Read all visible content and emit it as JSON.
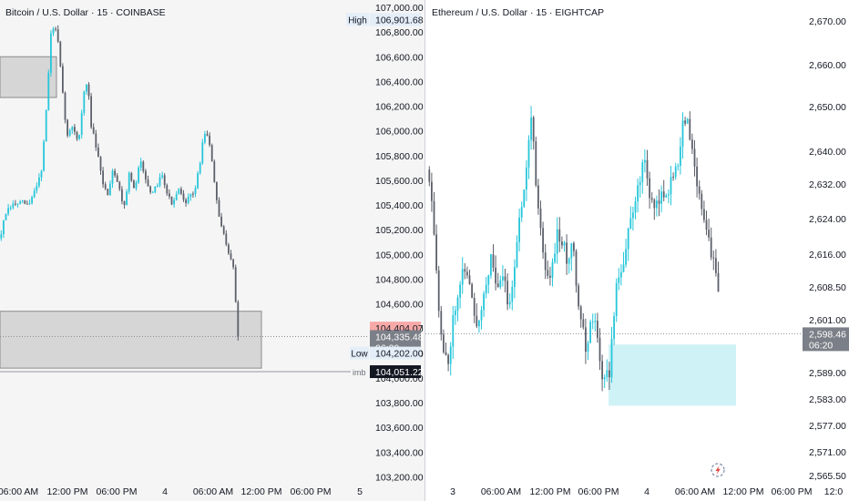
{
  "chart_data": [
    {
      "type": "candlestick",
      "title": "Bitcoin / U.S. Dollar · 15 · COINBASE",
      "y_ticks": [
        107000,
        106800,
        106600,
        106400,
        106200,
        106000,
        105800,
        105600,
        105400,
        105200,
        105000,
        104800,
        104600,
        104400,
        104200,
        104000,
        103800,
        103600,
        103400,
        103200
      ],
      "y_tick_labels": [
        "107,000.00",
        "106,800.00",
        "106,600.00",
        "106,400.00",
        "106,200.00",
        "106,000.00",
        "105,800.00",
        "105,600.00",
        "105,400.00",
        "105,200.00",
        "105,000.00",
        "104,800.00",
        "104,600.00",
        "104,400.00",
        "104,200.00",
        "104,000.00",
        "103,800.00",
        "103,600.00",
        "103,400.00",
        "103,200.00"
      ],
      "ylim": [
        103170,
        107020
      ],
      "x_tick_labels": [
        "06:00 AM",
        "12:00 PM",
        "06:00 PM",
        "4",
        "06:00 AM",
        "12:00 PM",
        "06:00 PM",
        "5"
      ],
      "path": [
        [
          0,
          105130
        ],
        [
          6,
          105330
        ],
        [
          14,
          105400
        ],
        [
          24,
          105420
        ],
        [
          32,
          105400
        ],
        [
          40,
          105560
        ],
        [
          46,
          105700
        ],
        [
          52,
          106300
        ],
        [
          56,
          106800
        ],
        [
          60,
          106850
        ],
        [
          64,
          106700
        ],
        [
          70,
          106200
        ],
        [
          74,
          105950
        ],
        [
          80,
          106050
        ],
        [
          86,
          105900
        ],
        [
          92,
          106300
        ],
        [
          96,
          106400
        ],
        [
          100,
          106050
        ],
        [
          106,
          105850
        ],
        [
          112,
          105600
        ],
        [
          118,
          105480
        ],
        [
          124,
          105700
        ],
        [
          130,
          105560
        ],
        [
          136,
          105380
        ],
        [
          142,
          105660
        ],
        [
          148,
          105500
        ],
        [
          154,
          105780
        ],
        [
          160,
          105620
        ],
        [
          166,
          105460
        ],
        [
          172,
          105560
        ],
        [
          178,
          105660
        ],
        [
          184,
          105480
        ],
        [
          190,
          105400
        ],
        [
          196,
          105530
        ],
        [
          202,
          105420
        ],
        [
          208,
          105460
        ],
        [
          214,
          105520
        ],
        [
          220,
          105760
        ],
        [
          224,
          106000
        ],
        [
          228,
          105950
        ],
        [
          232,
          105800
        ],
        [
          236,
          105550
        ],
        [
          240,
          105300
        ],
        [
          246,
          105150
        ],
        [
          252,
          105000
        ],
        [
          256,
          104900
        ],
        [
          260,
          104480
        ],
        [
          262,
          104270
        ]
      ],
      "zones": [
        {
          "price_top": 106600,
          "price_bottom": 106270
        },
        {
          "price_top": 104540,
          "price_bottom": 104080
        }
      ],
      "high_label": "High",
      "high_value": "106,901.68",
      "high_price": 106901.68,
      "low_label": "Low",
      "low_value": "104,202.00",
      "low_price": 104202.0,
      "current_value": "104,404.07",
      "current_price": 104404.07,
      "last_value": "104,335.48",
      "last_price": 104335.48,
      "countdown": "06:20",
      "imb_label": "imb",
      "imb_value": "104,051.22",
      "imb_price": 104051.22
    },
    {
      "type": "candlestick",
      "title": "Ethereum / U.S. Dollar · 15 · EIGHTCAP",
      "y_ticks": [
        2670,
        2660,
        2650,
        2640,
        2632,
        2624,
        2616,
        2608.5,
        2601,
        2589,
        2583,
        2577,
        2571,
        2565.5
      ],
      "y_tick_labels": [
        "2,670.00",
        "2,660.00",
        "2,650.00",
        "2,640.00",
        "2,632.00",
        "2,624.00",
        "2,616.00",
        "2,608.50",
        "2,601.00",
        "2,589.00",
        "2,583.00",
        "2,577.00",
        "2,571.00",
        "2,565.50"
      ],
      "x_tick_labels": [
        "3",
        "06:00 AM",
        "12:00 PM",
        "06:00 PM",
        "4",
        "06:00 AM",
        "12:00 PM",
        "06:00 PM",
        "12:0"
      ],
      "path": [
        [
          470,
          2636
        ],
        [
          474,
          2630
        ],
        [
          478,
          2618
        ],
        [
          482,
          2603
        ],
        [
          486,
          2594
        ],
        [
          492,
          2592
        ],
        [
          498,
          2603
        ],
        [
          504,
          2610
        ],
        [
          510,
          2614
        ],
        [
          516,
          2609
        ],
        [
          522,
          2600
        ],
        [
          528,
          2604
        ],
        [
          534,
          2611
        ],
        [
          540,
          2616
        ],
        [
          546,
          2608
        ],
        [
          552,
          2612
        ],
        [
          558,
          2605
        ],
        [
          564,
          2612
        ],
        [
          570,
          2624
        ],
        [
          576,
          2634
        ],
        [
          580,
          2642
        ],
        [
          584,
          2650
        ],
        [
          588,
          2633
        ],
        [
          594,
          2622
        ],
        [
          600,
          2610
        ],
        [
          606,
          2614
        ],
        [
          612,
          2622
        ],
        [
          618,
          2619
        ],
        [
          624,
          2614
        ],
        [
          628,
          2622
        ],
        [
          632,
          2612
        ],
        [
          636,
          2604
        ],
        [
          640,
          2600
        ],
        [
          644,
          2593
        ],
        [
          648,
          2600
        ],
        [
          652,
          2604
        ],
        [
          656,
          2596
        ],
        [
          660,
          2589
        ],
        [
          664,
          2590
        ],
        [
          668,
          2588
        ],
        [
          672,
          2597
        ],
        [
          676,
          2609
        ],
        [
          680,
          2612
        ],
        [
          686,
          2616
        ],
        [
          690,
          2622
        ],
        [
          696,
          2628
        ],
        [
          702,
          2634
        ],
        [
          708,
          2638
        ],
        [
          712,
          2632
        ],
        [
          718,
          2626
        ],
        [
          724,
          2630
        ],
        [
          730,
          2629
        ],
        [
          736,
          2633
        ],
        [
          742,
          2636
        ],
        [
          746,
          2640
        ],
        [
          750,
          2647
        ],
        [
          754,
          2648
        ],
        [
          758,
          2642
        ],
        [
          762,
          2636
        ],
        [
          766,
          2633
        ],
        [
          770,
          2628
        ],
        [
          774,
          2624
        ],
        [
          778,
          2620
        ],
        [
          782,
          2616
        ],
        [
          786,
          2611
        ],
        [
          790,
          2605
        ],
        [
          791,
          2598.5
        ]
      ],
      "zones": [
        {
          "price_top": 2596,
          "price_bottom": 2582
        }
      ],
      "last_value": "2,598.46",
      "last_price": 2598.46,
      "countdown": "06:20"
    }
  ]
}
